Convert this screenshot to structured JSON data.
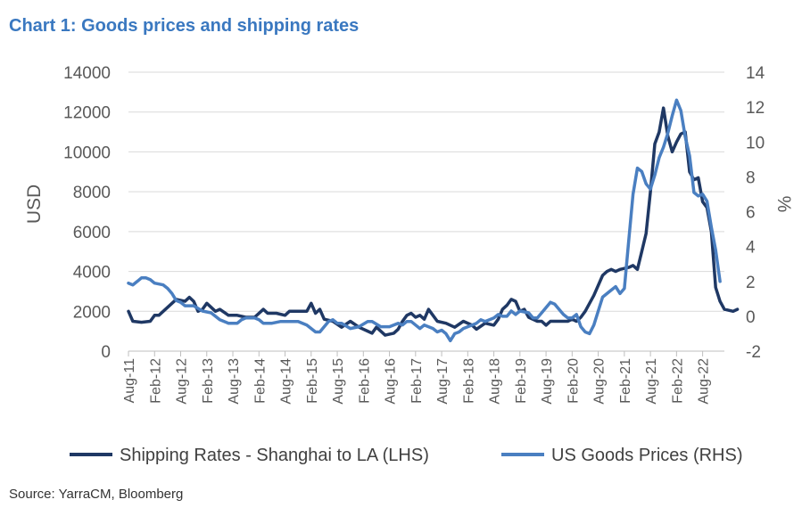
{
  "chart_data": {
    "type": "line",
    "title": "Chart 1: Goods prices and shipping rates",
    "source": "Source: YarraCM, Bloomberg",
    "ylabel_left": "USD",
    "ylabel_right": "%",
    "ylim_left": [
      0,
      14000
    ],
    "ylim_right": [
      -2,
      14
    ],
    "yticks_left": [
      "0",
      "2000",
      "4000",
      "6000",
      "8000",
      "10000",
      "12000",
      "14000"
    ],
    "yticks_right": [
      "-2",
      "0",
      "2",
      "4",
      "6",
      "8",
      "10",
      "12",
      "14"
    ],
    "x_tick_labels": [
      "Aug-11",
      "Feb-12",
      "Aug-12",
      "Feb-13",
      "Aug-13",
      "Feb-14",
      "Aug-14",
      "Feb-15",
      "Aug-15",
      "Feb-16",
      "Aug-16",
      "Feb-17",
      "Aug-17",
      "Feb-18",
      "Aug-18",
      "Feb-19",
      "Aug-19",
      "Feb-20",
      "Aug-20",
      "Feb-21",
      "Aug-21",
      "Feb-22",
      "Aug-22"
    ],
    "x_start": "2011-08",
    "grid": true,
    "legend_position": "bottom",
    "series": [
      {
        "name": "Shipping Rates - Shanghai to LA (LHS)",
        "axis": "left",
        "color": "#1f3864",
        "points": [
          [
            "2011-08",
            2000
          ],
          [
            "2011-09",
            1500
          ],
          [
            "2011-11",
            1450
          ],
          [
            "2012-01",
            1500
          ],
          [
            "2012-02",
            1800
          ],
          [
            "2012-03",
            1800
          ],
          [
            "2012-05",
            2200
          ],
          [
            "2012-07",
            2600
          ],
          [
            "2012-09",
            2500
          ],
          [
            "2012-10",
            2700
          ],
          [
            "2012-11",
            2500
          ],
          [
            "2012-12",
            2000
          ],
          [
            "2013-01",
            2100
          ],
          [
            "2013-02",
            2400
          ],
          [
            "2013-04",
            2000
          ],
          [
            "2013-05",
            2100
          ],
          [
            "2013-07",
            1800
          ],
          [
            "2013-09",
            1800
          ],
          [
            "2013-11",
            1700
          ],
          [
            "2014-01",
            1700
          ],
          [
            "2014-03",
            2100
          ],
          [
            "2014-04",
            1900
          ],
          [
            "2014-06",
            1900
          ],
          [
            "2014-08",
            1800
          ],
          [
            "2014-09",
            2000
          ],
          [
            "2014-11",
            2000
          ],
          [
            "2015-01",
            2000
          ],
          [
            "2015-02",
            2400
          ],
          [
            "2015-03",
            1900
          ],
          [
            "2015-04",
            2100
          ],
          [
            "2015-05",
            1600
          ],
          [
            "2015-07",
            1500
          ],
          [
            "2015-09",
            1200
          ],
          [
            "2015-11",
            1500
          ],
          [
            "2016-01",
            1200
          ],
          [
            "2016-03",
            1000
          ],
          [
            "2016-04",
            900
          ],
          [
            "2016-05",
            1200
          ],
          [
            "2016-06",
            1000
          ],
          [
            "2016-07",
            800
          ],
          [
            "2016-09",
            900
          ],
          [
            "2016-10",
            1100
          ],
          [
            "2016-11",
            1500
          ],
          [
            "2016-12",
            1800
          ],
          [
            "2017-01",
            1900
          ],
          [
            "2017-02",
            1700
          ],
          [
            "2017-03",
            1800
          ],
          [
            "2017-04",
            1600
          ],
          [
            "2017-05",
            2100
          ],
          [
            "2017-06",
            1800
          ],
          [
            "2017-07",
            1500
          ],
          [
            "2017-09",
            1400
          ],
          [
            "2017-11",
            1200
          ],
          [
            "2018-01",
            1500
          ],
          [
            "2018-03",
            1300
          ],
          [
            "2018-04",
            1100
          ],
          [
            "2018-06",
            1400
          ],
          [
            "2018-08",
            1300
          ],
          [
            "2018-09",
            1600
          ],
          [
            "2018-10",
            2100
          ],
          [
            "2018-11",
            2300
          ],
          [
            "2018-12",
            2600
          ],
          [
            "2019-01",
            2500
          ],
          [
            "2019-02",
            2000
          ],
          [
            "2019-03",
            2100
          ],
          [
            "2019-04",
            1700
          ],
          [
            "2019-06",
            1500
          ],
          [
            "2019-07",
            1500
          ],
          [
            "2019-08",
            1300
          ],
          [
            "2019-09",
            1500
          ],
          [
            "2019-11",
            1500
          ],
          [
            "2020-01",
            1500
          ],
          [
            "2020-02",
            1600
          ],
          [
            "2020-03",
            1500
          ],
          [
            "2020-04",
            1700
          ],
          [
            "2020-05",
            2000
          ],
          [
            "2020-07",
            2800
          ],
          [
            "2020-09",
            3800
          ],
          [
            "2020-10",
            4000
          ],
          [
            "2020-11",
            4100
          ],
          [
            "2020-12",
            4000
          ],
          [
            "2021-01",
            4100
          ],
          [
            "2021-03",
            4200
          ],
          [
            "2021-04",
            4300
          ],
          [
            "2021-05",
            4100
          ],
          [
            "2021-06",
            5000
          ],
          [
            "2021-07",
            5900
          ],
          [
            "2021-08",
            8000
          ],
          [
            "2021-09",
            10400
          ],
          [
            "2021-10",
            11000
          ],
          [
            "2021-11",
            12200
          ],
          [
            "2021-12",
            10800
          ],
          [
            "2022-01",
            10000
          ],
          [
            "2022-02",
            10500
          ],
          [
            "2022-03",
            10900
          ],
          [
            "2022-04",
            11000
          ],
          [
            "2022-05",
            9000
          ],
          [
            "2022-06",
            8600
          ],
          [
            "2022-07",
            8700
          ],
          [
            "2022-08",
            7500
          ],
          [
            "2022-09",
            7200
          ],
          [
            "2022-10",
            6000
          ],
          [
            "2022-11",
            3200
          ],
          [
            "2022-12",
            2500
          ],
          [
            "2023-01",
            2100
          ],
          [
            "2023-03",
            2000
          ],
          [
            "2023-04",
            2100
          ]
        ]
      },
      {
        "name": "US Goods Prices (RHS)",
        "axis": "right",
        "color": "#4a7fc1",
        "points": [
          [
            "2011-08",
            1.9
          ],
          [
            "2011-09",
            1.8
          ],
          [
            "2011-10",
            2.0
          ],
          [
            "2011-11",
            2.2
          ],
          [
            "2011-12",
            2.2
          ],
          [
            "2012-01",
            2.1
          ],
          [
            "2012-02",
            1.9
          ],
          [
            "2012-04",
            1.8
          ],
          [
            "2012-05",
            1.6
          ],
          [
            "2012-06",
            1.3
          ],
          [
            "2012-07",
            0.9
          ],
          [
            "2012-08",
            0.8
          ],
          [
            "2012-09",
            0.6
          ],
          [
            "2012-11",
            0.6
          ],
          [
            "2013-01",
            0.3
          ],
          [
            "2013-03",
            0.2
          ],
          [
            "2013-05",
            -0.2
          ],
          [
            "2013-07",
            -0.4
          ],
          [
            "2013-09",
            -0.4
          ],
          [
            "2013-10",
            -0.2
          ],
          [
            "2013-11",
            -0.1
          ],
          [
            "2014-01",
            -0.1
          ],
          [
            "2014-02",
            -0.2
          ],
          [
            "2014-03",
            -0.4
          ],
          [
            "2014-05",
            -0.4
          ],
          [
            "2014-07",
            -0.3
          ],
          [
            "2014-09",
            -0.3
          ],
          [
            "2014-11",
            -0.3
          ],
          [
            "2015-01",
            -0.5
          ],
          [
            "2015-03",
            -0.9
          ],
          [
            "2015-04",
            -0.9
          ],
          [
            "2015-06",
            -0.3
          ],
          [
            "2015-07",
            -0.2
          ],
          [
            "2015-08",
            -0.4
          ],
          [
            "2015-09",
            -0.4
          ],
          [
            "2015-11",
            -0.7
          ],
          [
            "2016-01",
            -0.6
          ],
          [
            "2016-03",
            -0.3
          ],
          [
            "2016-04",
            -0.3
          ],
          [
            "2016-06",
            -0.6
          ],
          [
            "2016-08",
            -0.6
          ],
          [
            "2016-10",
            -0.4
          ],
          [
            "2016-11",
            -0.5
          ],
          [
            "2016-12",
            -0.3
          ],
          [
            "2017-01",
            -0.3
          ],
          [
            "2017-02",
            -0.5
          ],
          [
            "2017-03",
            -0.7
          ],
          [
            "2017-04",
            -0.5
          ],
          [
            "2017-06",
            -0.7
          ],
          [
            "2017-07",
            -0.9
          ],
          [
            "2017-08",
            -0.8
          ],
          [
            "2017-09",
            -1.0
          ],
          [
            "2017-10",
            -1.4
          ],
          [
            "2017-11",
            -1.0
          ],
          [
            "2017-12",
            -0.9
          ],
          [
            "2018-01",
            -0.7
          ],
          [
            "2018-03",
            -0.5
          ],
          [
            "2018-04",
            -0.4
          ],
          [
            "2018-05",
            -0.2
          ],
          [
            "2018-06",
            -0.3
          ],
          [
            "2018-08",
            -0.1
          ],
          [
            "2018-09",
            0.1
          ],
          [
            "2018-10",
            0.0
          ],
          [
            "2018-11",
            0.0
          ],
          [
            "2018-12",
            0.3
          ],
          [
            "2019-01",
            0.1
          ],
          [
            "2019-02",
            0.3
          ],
          [
            "2019-04",
            0.2
          ],
          [
            "2019-05",
            -0.1
          ],
          [
            "2019-06",
            -0.1
          ],
          [
            "2019-07",
            0.2
          ],
          [
            "2019-08",
            0.5
          ],
          [
            "2019-09",
            0.8
          ],
          [
            "2019-10",
            0.7
          ],
          [
            "2019-11",
            0.4
          ],
          [
            "2019-12",
            0.1
          ],
          [
            "2020-01",
            -0.1
          ],
          [
            "2020-02",
            -0.1
          ],
          [
            "2020-03",
            0.1
          ],
          [
            "2020-04",
            -0.6
          ],
          [
            "2020-05",
            -0.9
          ],
          [
            "2020-06",
            -1.0
          ],
          [
            "2020-07",
            -0.5
          ],
          [
            "2020-08",
            0.3
          ],
          [
            "2020-09",
            1.1
          ],
          [
            "2020-10",
            1.3
          ],
          [
            "2020-11",
            1.5
          ],
          [
            "2020-12",
            1.7
          ],
          [
            "2021-01",
            1.3
          ],
          [
            "2021-02",
            1.6
          ],
          [
            "2021-03",
            4.3
          ],
          [
            "2021-04",
            7.0
          ],
          [
            "2021-05",
            8.5
          ],
          [
            "2021-06",
            8.3
          ],
          [
            "2021-07",
            7.6
          ],
          [
            "2021-08",
            7.3
          ],
          [
            "2021-09",
            8.1
          ],
          [
            "2021-10",
            9.1
          ],
          [
            "2021-11",
            9.7
          ],
          [
            "2021-12",
            10.5
          ],
          [
            "2022-01",
            11.5
          ],
          [
            "2022-02",
            12.4
          ],
          [
            "2022-03",
            11.8
          ],
          [
            "2022-04",
            10.3
          ],
          [
            "2022-05",
            9.2
          ],
          [
            "2022-06",
            7.1
          ],
          [
            "2022-07",
            6.9
          ],
          [
            "2022-08",
            7.0
          ],
          [
            "2022-09",
            6.6
          ],
          [
            "2022-10",
            5.1
          ],
          [
            "2022-11",
            3.8
          ],
          [
            "2022-12",
            2.0
          ]
        ]
      }
    ]
  }
}
